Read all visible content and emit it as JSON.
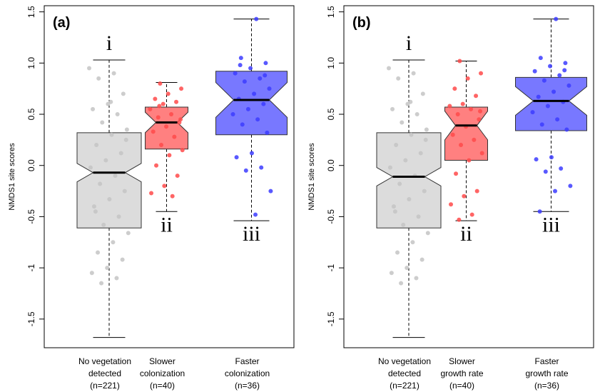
{
  "chart_data": [
    {
      "type": "boxplot",
      "label": "(a)",
      "ylabel": "NMDS1 site scores",
      "ylim": [
        -1.78,
        1.56
      ],
      "yticks": [
        -1.5,
        -1,
        -0.5,
        {
          "value": 0,
          "label": "0.0"
        },
        0.5,
        {
          "value": 1,
          "label": "1.0"
        },
        1.5
      ],
      "categories": [
        [
          "No vegetation",
          "detected",
          "(n=221)"
        ],
        [
          "Slower",
          "colonization",
          "(n=40)"
        ],
        [
          "Faster",
          "colonization",
          "(n=36)"
        ]
      ],
      "groups": [
        {
          "annotation": "i",
          "color": "#dcdcdc",
          "point_color": "#c4c4c4",
          "min": -1.68,
          "q1": -0.61,
          "median": -0.07,
          "q3": 0.32,
          "max": 1.03,
          "notch": [
            -0.16,
            0.02
          ],
          "points": [
            0.95,
            0.9,
            0.85,
            0.7,
            0.6,
            0.55,
            0.5,
            0.42,
            0.35,
            0.3,
            0.2,
            0.12,
            0.05,
            -0.02,
            -0.1,
            -0.18,
            -0.25,
            -0.33,
            -0.4,
            -0.5,
            -0.58,
            -0.66,
            -0.75,
            -0.85,
            -0.92,
            -1.0,
            -1.05,
            -1.1,
            -1.15,
            0.25,
            0.62,
            -0.45
          ]
        },
        {
          "annotation": "ii",
          "color": "#ff8080",
          "point_color": "#ff4a4a",
          "min": -0.45,
          "q1": 0.16,
          "median": 0.42,
          "q3": 0.57,
          "max": 0.81,
          "notch": [
            0.32,
            0.52
          ],
          "points": [
            0.8,
            0.75,
            0.7,
            0.65,
            0.62,
            0.6,
            0.55,
            0.5,
            0.47,
            0.42,
            0.38,
            0.33,
            0.28,
            0.2,
            0.15,
            0.1,
            0.0,
            -0.1,
            -0.2,
            -0.27,
            -0.3,
            0.58,
            0.45
          ]
        },
        {
          "annotation": "iii",
          "color": "#7878ff",
          "point_color": "#3c3cff",
          "min": -0.54,
          "q1": 0.3,
          "median": 0.64,
          "q3": 0.92,
          "max": 1.43,
          "notch": [
            0.47,
            0.81
          ],
          "points": [
            1.43,
            1.05,
            1.0,
            0.95,
            0.9,
            0.85,
            0.82,
            0.75,
            0.7,
            0.65,
            0.6,
            0.55,
            0.5,
            0.45,
            0.4,
            0.32,
            0.12,
            0.08,
            -0.02,
            -0.05,
            -0.25,
            -0.48,
            0.98,
            0.88
          ]
        }
      ]
    },
    {
      "type": "boxplot",
      "label": "(b)",
      "ylabel": "NMDS1 site scores",
      "ylim": [
        -1.78,
        1.56
      ],
      "yticks": [
        -1.5,
        -1,
        -0.5,
        {
          "value": 0,
          "label": "0.0"
        },
        0.5,
        {
          "value": 1,
          "label": "1.0"
        },
        1.5
      ],
      "categories": [
        [
          "No vegetation",
          "detected",
          "(n=221)"
        ],
        [
          "Slower",
          "growth rate",
          "(n=40)"
        ],
        [
          "Faster",
          "growth rate",
          "(n=36)"
        ]
      ],
      "groups": [
        {
          "annotation": "i",
          "color": "#dcdcdc",
          "point_color": "#c4c4c4",
          "min": -1.68,
          "q1": -0.61,
          "median": -0.11,
          "q3": 0.32,
          "max": 1.03,
          "notch": [
            -0.2,
            -0.02
          ],
          "points": [
            0.95,
            0.9,
            0.85,
            0.7,
            0.6,
            0.55,
            0.5,
            0.42,
            0.35,
            0.3,
            0.2,
            0.12,
            0.05,
            -0.02,
            -0.1,
            -0.18,
            -0.25,
            -0.33,
            -0.4,
            -0.5,
            -0.58,
            -0.66,
            -0.75,
            -0.85,
            -0.92,
            -1.0,
            -1.05,
            -1.1,
            -1.15,
            0.25,
            0.62,
            -0.45
          ]
        },
        {
          "annotation": "ii",
          "color": "#ff8080",
          "point_color": "#ff4a4a",
          "min": -0.54,
          "q1": 0.05,
          "median": 0.39,
          "q3": 0.57,
          "max": 1.02,
          "notch": [
            0.25,
            0.53
          ],
          "points": [
            1.02,
            0.9,
            0.85,
            0.75,
            0.68,
            0.6,
            0.58,
            0.55,
            0.5,
            0.45,
            0.38,
            0.3,
            0.25,
            0.2,
            0.12,
            0.05,
            -0.08,
            -0.25,
            -0.3,
            -0.38,
            -0.48,
            -0.53,
            0.53
          ]
        },
        {
          "annotation": "iii",
          "color": "#7878ff",
          "point_color": "#3c3cff",
          "min": -0.45,
          "q1": 0.34,
          "median": 0.63,
          "q3": 0.86,
          "max": 1.43,
          "notch": [
            0.49,
            0.77
          ],
          "points": [
            1.43,
            1.05,
            1.0,
            0.97,
            0.92,
            0.88,
            0.83,
            0.78,
            0.72,
            0.67,
            0.62,
            0.58,
            0.52,
            0.45,
            0.4,
            0.35,
            0.08,
            0.06,
            -0.03,
            -0.06,
            -0.2,
            -0.25,
            -0.45,
            0.93
          ]
        }
      ]
    }
  ]
}
